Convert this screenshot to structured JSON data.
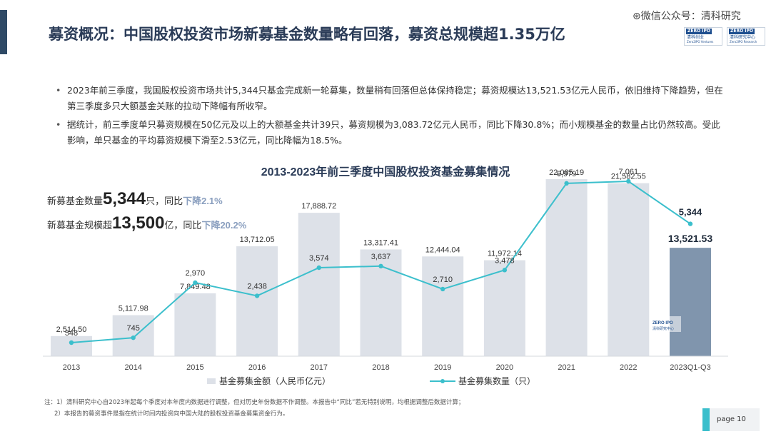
{
  "header": {
    "title": "募资概况：中国股权投资市场新募基金数量略有回落，募资总规模超1.35万亿",
    "watermark": "⊛微信公众号：清科研究",
    "logos": [
      {
        "mark": "ZERO IPO",
        "cn": "清科创业",
        "sub": "Zero2IPO Ventures"
      },
      {
        "mark": "ZERO IPO",
        "cn": "清科研究中心",
        "sub": "Zero2IPO Research"
      }
    ]
  },
  "bullets": [
    "2023年前三季度，我国股权投资市场共计5,344只基金完成新一轮募集，数量稍有回落但总体保持稳定；募资规模达13,521.53亿元人民币，依旧维持下降趋势，但在第三季度多只大额基金关账的拉动下降幅有所收窄。",
    "据统计，前三季度单只募资规模在50亿元及以上的大额基金共计39只，募资规模为3,083.72亿元人民币，同比下降30.8%；而小规模基金的数量占比仍然较高。受此影响，单只基金的平均募资规模下滑至2.53亿元，同比降幅为18.5%。"
  ],
  "callouts": {
    "count": {
      "prefix": "新募基金数量",
      "value": "5,344",
      "suffix": "只，同比",
      "change": "下降2.1%"
    },
    "amount": {
      "prefix": "新募基金规模超",
      "value": "13,500",
      "suffix": "亿，同比",
      "change": "下降20.2%"
    }
  },
  "chart_data": {
    "type": "bar",
    "title": "2013-2023年前三季度中国股权投资基金募集情况",
    "categories": [
      "2013",
      "2014",
      "2015",
      "2016",
      "2017",
      "2018",
      "2019",
      "2020",
      "2021",
      "2022",
      "2023Q1-Q3"
    ],
    "series": [
      {
        "name": "基金募集金额（人民币亿元）",
        "type": "bar",
        "values": [
          2514.5,
          5117.98,
          7849.48,
          13712.05,
          17888.72,
          13317.41,
          12444.04,
          11972.14,
          22085.19,
          21582.55,
          13521.53
        ],
        "labels": [
          "2,514.50",
          "5,117.98",
          "7,849.48",
          "13,712.05",
          "17,888.72",
          "13,317.41",
          "12,444.04",
          "11,972.14",
          "22,085.19",
          "21,582.55",
          "13,521.53"
        ]
      },
      {
        "name": "基金募集数量（只）",
        "type": "line",
        "values": [
          548,
          745,
          2970,
          2438,
          3574,
          3637,
          2710,
          3478,
          6979,
          7061,
          5344
        ],
        "labels": [
          "548",
          "745",
          "2,970",
          "2,438",
          "3,574",
          "3,637",
          "2,710",
          "3,478",
          "6,979",
          "7,061",
          "5,344"
        ]
      }
    ],
    "colors": {
      "bar": "#dde1e8",
      "bar_highlight": "#8095ad",
      "line": "#3bbfcc",
      "title": "#2a3b57",
      "callout_change": "#8a9fbf"
    },
    "legend_position": "bottom",
    "grid": false
  },
  "notes": [
    "注：1）清科研究中心自2023年起每个季度对本年度内数据进行调整，但对历史年份数据不作调整。本报告中“同比”若无特别说明，均根据调整后数据计算；",
    "2）本报告的募资事件是指在统计时间内投资向中国大陆的股权投资基金募集资金行为。"
  ],
  "footer": {
    "page_label": "page  10"
  }
}
